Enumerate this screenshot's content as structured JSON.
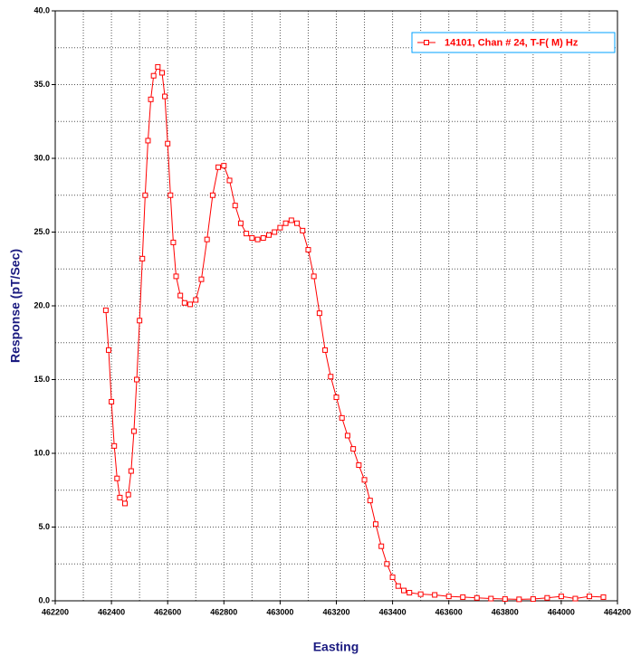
{
  "chart_data": {
    "type": "line",
    "xlabel": "Easting",
    "ylabel": "Response (pT/Sec)",
    "xlim": [
      462200,
      464200
    ],
    "ylim": [
      0,
      40
    ],
    "xticks": [
      462200,
      462400,
      462600,
      462800,
      463000,
      463200,
      463400,
      463600,
      463800,
      464000,
      464200
    ],
    "yticks": [
      {
        "value": 0,
        "label": "0.0"
      },
      {
        "value": 5,
        "label": "5.0"
      },
      {
        "value": 10,
        "label": "10.0"
      },
      {
        "value": 15,
        "label": "15.0"
      },
      {
        "value": 20,
        "label": "20.0"
      },
      {
        "value": 25,
        "label": "25.0"
      },
      {
        "value": 30,
        "label": "30.0"
      },
      {
        "value": 35,
        "label": "35.0"
      },
      {
        "value": 40,
        "label": "40.0"
      }
    ],
    "minor_xticks": [
      462300,
      462500,
      462700,
      462900,
      463100,
      463300,
      463500,
      463700,
      463900,
      464100
    ],
    "minor_yticks": [
      2.5,
      7.5,
      12.5,
      17.5,
      22.5,
      27.5,
      32.5,
      37.5
    ],
    "grid": true,
    "legend": "upper right",
    "series": [
      {
        "name": "14101, Chan # 24, T-F( M) Hz",
        "color": "#ff0000",
        "x": [
          462380,
          462390,
          462400,
          462410,
          462420,
          462430,
          462448,
          462460,
          462470,
          462480,
          462490,
          462500,
          462510,
          462520,
          462530,
          462540,
          462550,
          462565,
          462580,
          462590,
          462600,
          462610,
          462620,
          462630,
          462645,
          462660,
          462680,
          462700,
          462720,
          462740,
          462760,
          462780,
          462800,
          462820,
          462840,
          462860,
          462880,
          462900,
          462920,
          462940,
          462960,
          462980,
          463000,
          463020,
          463040,
          463060,
          463080,
          463100,
          463120,
          463140,
          463160,
          463180,
          463200,
          463220,
          463240,
          463260,
          463280,
          463300,
          463320,
          463340,
          463360,
          463380,
          463400,
          463420,
          463440,
          463460,
          463500,
          463550,
          463600,
          463650,
          463700,
          463750,
          463800,
          463850,
          463900,
          463950,
          464000,
          464050,
          464100,
          464150
        ],
        "values": [
          19.7,
          17.0,
          13.5,
          10.5,
          8.3,
          7.0,
          6.6,
          7.2,
          8.8,
          11.5,
          15.0,
          19.0,
          23.2,
          27.5,
          31.2,
          34.0,
          35.6,
          36.2,
          35.8,
          34.2,
          31.0,
          27.5,
          24.3,
          22.0,
          20.7,
          20.2,
          20.1,
          20.4,
          21.8,
          24.5,
          27.5,
          29.4,
          29.5,
          28.5,
          26.8,
          25.6,
          24.9,
          24.6,
          24.5,
          24.6,
          24.8,
          25.0,
          25.3,
          25.6,
          25.8,
          25.6,
          25.1,
          23.8,
          22.0,
          19.5,
          17.0,
          15.2,
          13.8,
          12.4,
          11.2,
          10.3,
          9.2,
          8.2,
          6.8,
          5.2,
          3.7,
          2.5,
          1.6,
          1.0,
          0.7,
          0.55,
          0.45,
          0.4,
          0.3,
          0.25,
          0.2,
          0.15,
          0.12,
          0.1,
          0.12,
          0.2,
          0.3,
          0.15,
          0.3,
          0.25
        ]
      }
    ]
  }
}
